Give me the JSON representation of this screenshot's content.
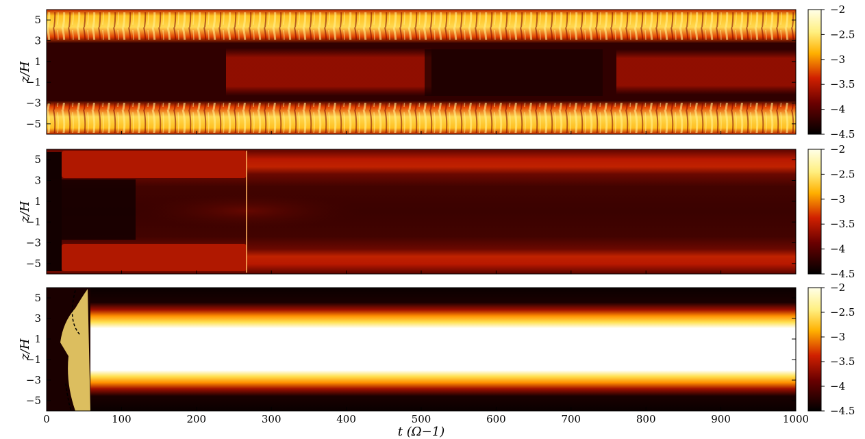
{
  "chart_data": [
    {
      "type": "heatmap",
      "panel": "top",
      "xlabel": "",
      "ylabel": "z/H",
      "xlim": [
        0,
        1000
      ],
      "ylim": [
        -6,
        6
      ],
      "yticks": [
        5,
        3,
        1,
        -1,
        -3,
        -5
      ],
      "ytick_labels": [
        "5",
        "3",
        "1",
        "−1",
        "−3",
        "−5"
      ],
      "xtick_labels_shown": false,
      "colorbar": {
        "range": [
          -4.5,
          -2
        ],
        "ticks": [
          -2,
          -2.5,
          -3,
          -3.5,
          -4,
          -4.5
        ],
        "tick_labels": [
          "−2",
          "−2.5",
          "−3",
          "−3.5",
          "−4",
          "−4.5"
        ],
        "colormap": "hot"
      },
      "description_values": {
        "upper_band_z": [
          2.5,
          6
        ],
        "lower_band_z": [
          -6,
          -2.5
        ],
        "band_level": -2.5,
        "midplane_level_quiet": -4.5,
        "midplane_level_active": -3.5,
        "active_midplane_t_ranges": [
          [
            300,
            500
          ],
          [
            880,
            1000
          ]
        ]
      }
    },
    {
      "type": "heatmap",
      "panel": "middle",
      "xlabel": "",
      "ylabel": "z/H",
      "xlim": [
        0,
        1000
      ],
      "ylim": [
        -6,
        6
      ],
      "yticks": [
        5,
        3,
        1,
        -1,
        -3,
        -5
      ],
      "ytick_labels": [
        "5",
        "3",
        "1",
        "−1",
        "−3",
        "−5"
      ],
      "xtick_labels_shown": false,
      "colorbar": {
        "range": [
          -4.5,
          -2
        ],
        "ticks": [
          -2,
          -2.5,
          -3,
          -3.5,
          -4,
          -4.5
        ],
        "tick_labels": [
          "−2",
          "−2.5",
          "−3",
          "−3.5",
          "−4",
          "−4.5"
        ],
        "colormap": "hot"
      },
      "description_values": {
        "front_t": 265,
        "band_z": [
          4,
          -4
        ],
        "band_level": -3.5,
        "background_level": -4
      }
    },
    {
      "type": "heatmap",
      "panel": "bottom",
      "xlabel": "t (Ω−1)",
      "ylabel": "z/H",
      "xlim": [
        0,
        1000
      ],
      "ylim": [
        -6,
        6
      ],
      "xticks": [
        0,
        100,
        200,
        300,
        400,
        500,
        600,
        700,
        800,
        900,
        1000
      ],
      "xtick_labels": [
        "0",
        "100",
        "200",
        "300",
        "400",
        "500",
        "600",
        "700",
        "800",
        "900",
        "1000"
      ],
      "yticks": [
        5,
        3,
        1,
        -1,
        -3,
        -5
      ],
      "ytick_labels": [
        "5",
        "3",
        "1",
        "−1",
        "−3",
        "−5"
      ],
      "colorbar": {
        "range": [
          -4.5,
          -2
        ],
        "ticks": [
          -2,
          -2.5,
          -3,
          -3.5,
          -4,
          -4.5
        ],
        "tick_labels": [
          "−2",
          "−2.5",
          "−3",
          "−3.5",
          "−4",
          "−4.5"
        ],
        "colormap": "hot"
      },
      "description_values": {
        "core_z": [
          -2.5,
          2.5
        ],
        "core_level": -2,
        "transition_t": 60,
        "outer_level": -4.5
      }
    }
  ],
  "colors": {
    "black": "#000000",
    "dark_red": "#5a0000",
    "red": "#b81000",
    "orange": "#ff8c00",
    "yellow": "#ffe040",
    "white": "#ffffff"
  }
}
